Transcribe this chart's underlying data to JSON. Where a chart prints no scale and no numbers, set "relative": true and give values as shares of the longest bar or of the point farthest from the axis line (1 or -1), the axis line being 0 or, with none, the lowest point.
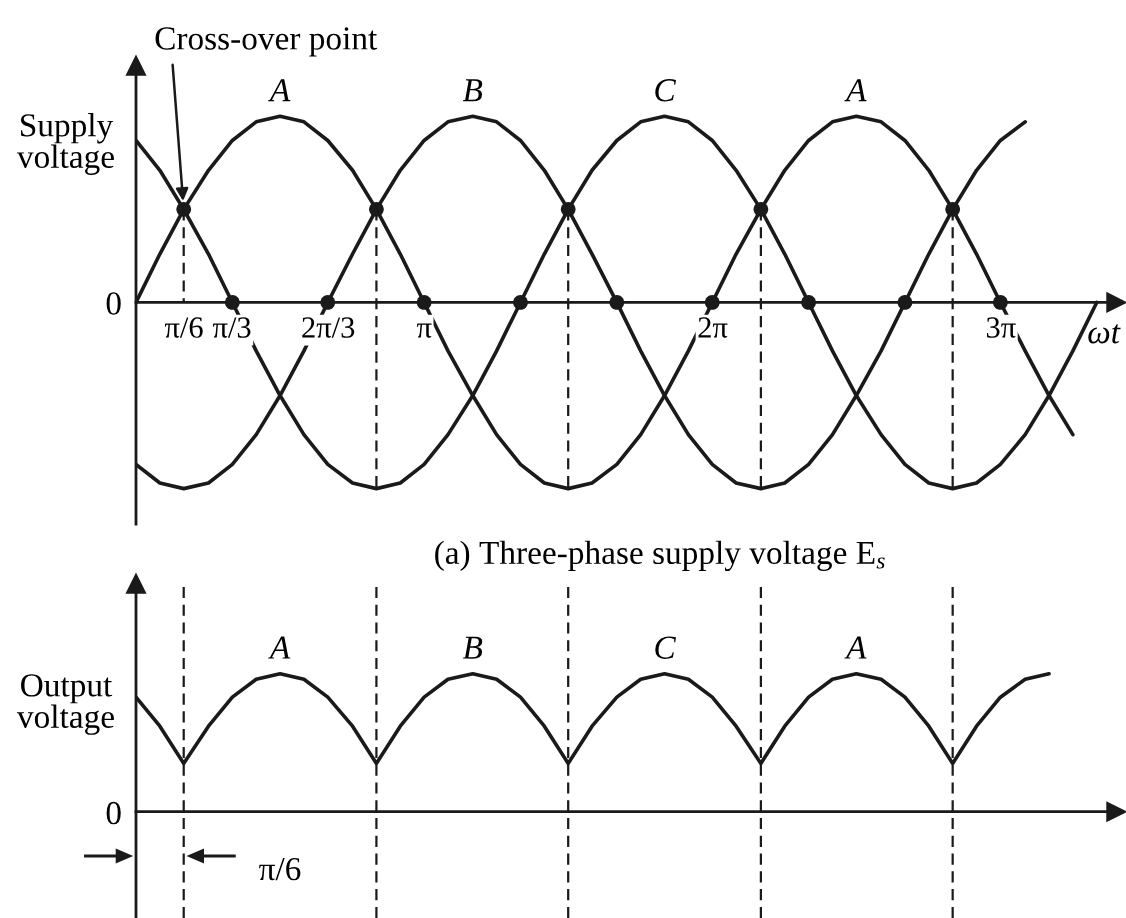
{
  "chart_data": [
    {
      "type": "line",
      "relative": true,
      "ylabel": "Supply\nvoltage",
      "xlabel": "ωt",
      "tick_labels": "x",
      "xlim": [
        0,
        10.68
      ],
      "xticks": [
        {
          "value": 0.5236,
          "label": "π/6"
        },
        {
          "value": 1.0472,
          "label": "π/3"
        },
        {
          "value": 2.0944,
          "label": "2π/3"
        },
        {
          "value": 3.1416,
          "label": "π"
        },
        {
          "value": 6.2832,
          "label": "2π"
        },
        {
          "value": 9.4248,
          "label": "3π"
        }
      ],
      "x": [
        0,
        0.26,
        0.52,
        0.79,
        1.05,
        1.31,
        1.57,
        1.83,
        2.09,
        2.36,
        2.62,
        2.88,
        3.14,
        3.4,
        3.67,
        3.93,
        4.19,
        4.45,
        4.71,
        4.97,
        5.24,
        5.5,
        5.76,
        6.02,
        6.28,
        6.54,
        6.81,
        7.07,
        7.33,
        7.59,
        7.85,
        8.12,
        8.38,
        8.64,
        8.9,
        9.16,
        9.42,
        9.69,
        9.95,
        10.21,
        10.47
      ],
      "series": [
        {
          "color": "#1a1a1a",
          "values": [
            0,
            0.26,
            0.5,
            0.71,
            0.87,
            0.97,
            1,
            0.97,
            0.87,
            0.71,
            0.5,
            0.26,
            0,
            -0.26,
            -0.5,
            -0.71,
            -0.87,
            -0.97,
            -1,
            -0.97,
            -0.87,
            -0.71,
            -0.5,
            -0.26,
            0,
            0.26,
            0.5,
            0.71,
            0.87,
            0.97,
            1,
            0.97,
            0.87,
            0.71,
            0.5,
            0.26,
            0,
            -0.26,
            -0.5,
            -0.71,
            null
          ]
        },
        {
          "color": "#1a1a1a",
          "values": [
            -0.87,
            -0.97,
            -1,
            -0.97,
            -0.87,
            -0.71,
            -0.5,
            -0.26,
            0,
            0.26,
            0.5,
            0.71,
            0.87,
            0.97,
            1,
            0.97,
            0.87,
            0.71,
            0.5,
            0.26,
            0,
            -0.26,
            -0.5,
            -0.71,
            -0.87,
            -0.97,
            -1,
            -0.97,
            -0.87,
            -0.71,
            -0.5,
            -0.26,
            0,
            0.26,
            0.5,
            0.71,
            0.87,
            0.97,
            null,
            null,
            null
          ]
        },
        {
          "color": "#1a1a1a",
          "values": [
            0.87,
            0.71,
            0.5,
            0.26,
            0,
            -0.26,
            -0.5,
            -0.71,
            -0.87,
            -0.97,
            -1,
            -0.97,
            -0.87,
            -0.71,
            -0.5,
            -0.26,
            0,
            0.26,
            0.5,
            0.71,
            0.87,
            0.97,
            1,
            0.97,
            0.87,
            0.71,
            0.5,
            0.26,
            0,
            -0.26,
            -0.5,
            -0.71,
            -0.87,
            -0.97,
            -1,
            -0.97,
            -0.87,
            -0.71,
            -0.5,
            -0.26,
            0
          ]
        },
        {
          "type": "line",
          "line_style": "dashed",
          "color": "#1a1a1a",
          "x": [
            0.52,
            0.52
          ],
          "values": [
            0.5,
            0
          ]
        },
        {
          "type": "line",
          "line_style": "dashed",
          "color": "#1a1a1a",
          "x": [
            2.62,
            2.62
          ],
          "values": [
            0.5,
            -1
          ]
        },
        {
          "type": "line",
          "line_style": "dashed",
          "color": "#1a1a1a",
          "x": [
            4.71,
            4.71
          ],
          "values": [
            0.5,
            -1
          ]
        },
        {
          "type": "line",
          "line_style": "dashed",
          "color": "#1a1a1a",
          "x": [
            6.81,
            6.81
          ],
          "values": [
            0.5,
            -1
          ]
        },
        {
          "type": "line",
          "line_style": "dashed",
          "color": "#1a1a1a",
          "x": [
            8.9,
            8.9
          ],
          "values": [
            0.5,
            -1
          ]
        },
        {
          "type": "scatter",
          "marker": "circle",
          "color": "#1a1a1a",
          "x": [
            0.52,
            1.05,
            2.09,
            2.62,
            3.14,
            4.19,
            4.71,
            5.24,
            6.28,
            6.81,
            7.33,
            8.38,
            8.9,
            9.42
          ],
          "values": [
            0.5,
            0,
            0,
            0.5,
            0,
            0,
            0.5,
            0,
            0,
            0.5,
            0,
            0,
            0.5,
            0
          ]
        }
      ],
      "annotations": [
        {
          "text": "Cross-over point",
          "x": 0.52,
          "y": 0.5
        },
        {
          "text": "A",
          "x": 1.57,
          "y": 1
        },
        {
          "text": "B",
          "x": 3.67,
          "y": 1
        },
        {
          "text": "C",
          "x": 5.76,
          "y": 1
        },
        {
          "text": "A",
          "x": 7.85,
          "y": 1
        },
        {
          "text": "0",
          "x": 0,
          "y": 0
        },
        "(a) Three-phase supply voltage E$_{s}$"
      ]
    },
    {
      "type": "line",
      "relative": true,
      "ylabel": "Output\nvoltage",
      "tick_labels": false,
      "xlim": [
        0,
        10.68
      ],
      "x": [
        0,
        0.26,
        0.52,
        0.79,
        1.05,
        1.31,
        1.57,
        1.83,
        2.09,
        2.36,
        2.62,
        2.88,
        3.14,
        3.4,
        3.67,
        3.93,
        4.19,
        4.45,
        4.71,
        4.97,
        5.24,
        5.5,
        5.76,
        6.02,
        6.28,
        6.54,
        6.81,
        7.07,
        7.33,
        7.59,
        7.85,
        8.12,
        8.38,
        8.64,
        8.9,
        9.16,
        9.42,
        9.69,
        9.95
      ],
      "series": [
        {
          "color": "#1a1a1a",
          "values": [
            0.83,
            0.62,
            0.35,
            0.62,
            0.83,
            0.96,
            1,
            0.96,
            0.83,
            0.62,
            0.35,
            0.62,
            0.83,
            0.96,
            1,
            0.96,
            0.83,
            0.62,
            0.35,
            0.62,
            0.83,
            0.96,
            1,
            0.96,
            0.83,
            0.62,
            0.35,
            0.62,
            0.83,
            0.96,
            1,
            0.96,
            0.83,
            0.62,
            0.35,
            0.62,
            0.83,
            0.96,
            1
          ]
        }
      ],
      "ref_lines": [
        {
          "axis": "x",
          "value": 0.52,
          "line_style": "dashed",
          "color": "#1a1a1a"
        },
        {
          "axis": "x",
          "value": 2.62,
          "line_style": "dashed",
          "color": "#1a1a1a"
        },
        {
          "axis": "x",
          "value": 4.71,
          "line_style": "dashed",
          "color": "#1a1a1a"
        },
        {
          "axis": "x",
          "value": 6.81,
          "line_style": "dashed",
          "color": "#1a1a1a"
        },
        {
          "axis": "x",
          "value": 8.9,
          "line_style": "dashed",
          "color": "#1a1a1a"
        }
      ],
      "annotations": [
        {
          "text": "A",
          "x": 1.57,
          "y": 1
        },
        {
          "text": "B",
          "x": 3.67,
          "y": 1
        },
        {
          "text": "C",
          "x": 5.76,
          "y": 1
        },
        {
          "text": "A",
          "x": 7.85,
          "y": 1
        },
        "0",
        "π/6"
      ]
    }
  ]
}
